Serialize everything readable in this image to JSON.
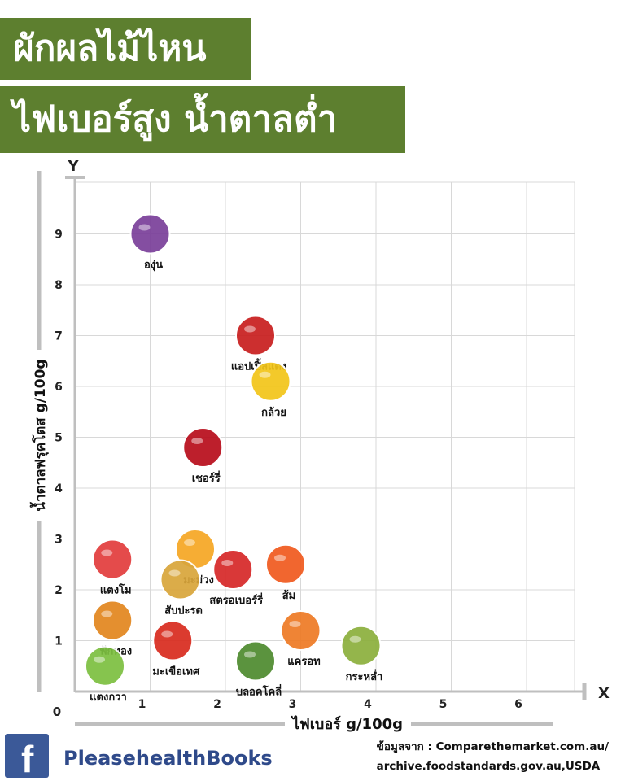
{
  "header": {
    "title_line1": "ผักผลไม้ไหน",
    "title_line2": "ไฟเบอร์สูง น้ำตาลต่ำ"
  },
  "chart_data": {
    "type": "scatter",
    "xlabel": "ไฟเบอร์ g/100g",
    "ylabel": "น้ำตาลฟรุคโตส g/100g",
    "x_axis_letter": "X",
    "y_axis_letter": "Y",
    "origin_label": "0",
    "xlim": [
      0,
      7
    ],
    "ylim": [
      0,
      10
    ],
    "x_ticks": [
      1,
      2,
      3,
      4,
      5,
      6
    ],
    "y_ticks": [
      1,
      2,
      3,
      4,
      5,
      6,
      7,
      8,
      9
    ],
    "grid": true,
    "points": [
      {
        "name": "องุ่น",
        "x": 1.0,
        "y": 9.0,
        "color": "#7a3f9a"
      },
      {
        "name": "แอปเปิ้ลแดง",
        "x": 2.4,
        "y": 7.0,
        "color": "#c81e1e"
      },
      {
        "name": "กล้วย",
        "x": 2.6,
        "y": 6.1,
        "color": "#f2c519"
      },
      {
        "name": "เชอร์รี่",
        "x": 1.7,
        "y": 4.8,
        "color": "#b80d1b"
      },
      {
        "name": "มะม่วง",
        "x": 1.6,
        "y": 2.8,
        "color": "#f6a723"
      },
      {
        "name": "แตงโม",
        "x": 0.5,
        "y": 2.6,
        "color": "#e23c3c"
      },
      {
        "name": "สับปะรด",
        "x": 1.4,
        "y": 2.2,
        "color": "#d9a53a"
      },
      {
        "name": "สตรอเบอร์รี่",
        "x": 2.1,
        "y": 2.4,
        "color": "#d62828"
      },
      {
        "name": "ส้ม",
        "x": 2.8,
        "y": 2.5,
        "color": "#f05a1e"
      },
      {
        "name": "ฟักทอง",
        "x": 0.5,
        "y": 1.4,
        "color": "#e2861e"
      },
      {
        "name": "มะเขือเทศ",
        "x": 1.3,
        "y": 1.0,
        "color": "#d92b1e"
      },
      {
        "name": "แครอท",
        "x": 3.0,
        "y": 1.2,
        "color": "#ee7a24"
      },
      {
        "name": "กระหล่ำ",
        "x": 3.8,
        "y": 0.9,
        "color": "#8caf3c"
      },
      {
        "name": "บลอคโคลี่",
        "x": 2.4,
        "y": 0.6,
        "color": "#4e8a2e"
      },
      {
        "name": "แตงกวา",
        "x": 0.4,
        "y": 0.5,
        "color": "#7cbf3f"
      }
    ]
  },
  "footer": {
    "facebook_icon": "facebook-f-icon",
    "brand_name": "PleasehealthBooks",
    "source_line1": "ข้อมูลจาก : Comparethemarket.com.au/",
    "source_line2": "archive.foodstandards.gov.au,USDA"
  }
}
